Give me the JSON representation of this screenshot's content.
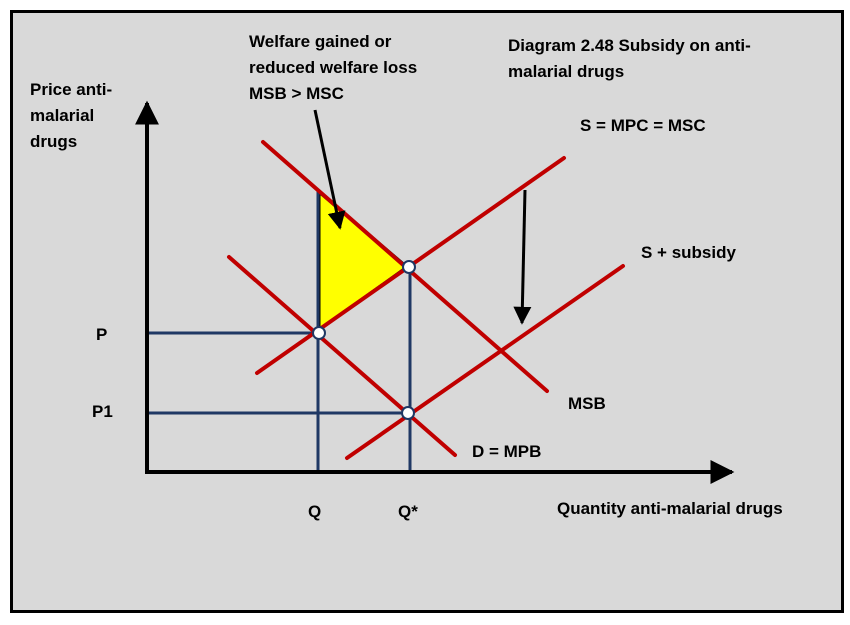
{
  "title": "Diagram 2.48 Subsidy on anti-malarial drugs",
  "title_lines": [
    "Diagram 2.48 Subsidy on anti-",
    "malarial drugs"
  ],
  "y_axis_label_lines": [
    "Price anti-",
    "malarial",
    "drugs"
  ],
  "x_axis_label": "Quantity anti-malarial drugs",
  "annotation_lines": [
    "Welfare gained or",
    "reduced welfare loss",
    "MSB > MSC"
  ],
  "curves": {
    "supply": "S = MPC = MSC",
    "supply_subsidy": "S + subsidy",
    "msb": "MSB",
    "demand": "D = MPB"
  },
  "price_labels": {
    "p": "P",
    "p1": "P1"
  },
  "quantity_labels": {
    "q": "Q",
    "q_star": "Q*"
  },
  "colors": {
    "background": "#d9d9d9",
    "curve": "#c00000",
    "guide": "#1f3864",
    "triangle": "#ffff00",
    "axis": "#000000"
  },
  "shaded_area": "welfare-gain-triangle"
}
